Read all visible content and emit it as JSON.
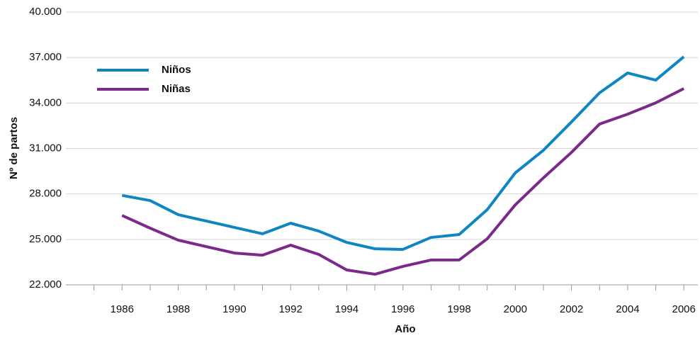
{
  "chart_data": {
    "type": "line",
    "x_label": "Año",
    "y_label": "Nº de partos",
    "x": [
      1986,
      1987,
      1988,
      1989,
      1990,
      1991,
      1992,
      1993,
      1994,
      1995,
      1996,
      1997,
      1998,
      1999,
      2000,
      2001,
      2002,
      2003,
      2004,
      2005,
      2006
    ],
    "series": [
      {
        "name": "Niños",
        "color": "#0f86c1",
        "values": [
          27900,
          27560,
          26630,
          26210,
          25790,
          25370,
          26070,
          25550,
          24800,
          24380,
          24340,
          25130,
          25320,
          26960,
          29390,
          30880,
          32750,
          34670,
          35980,
          35510,
          37050
        ]
      },
      {
        "name": "Niñas",
        "color": "#7b2a8a",
        "values": [
          26580,
          25740,
          24950,
          24520,
          24100,
          23960,
          24620,
          24010,
          22980,
          22700,
          23220,
          23640,
          23640,
          25040,
          27280,
          29060,
          30740,
          32610,
          33260,
          34010,
          34950
        ]
      }
    ],
    "xlim": [
      1984,
      2006.5
    ],
    "xticks": [
      1986,
      1988,
      1990,
      1992,
      1994,
      1996,
      1998,
      2000,
      2002,
      2004,
      2006
    ],
    "x_minor_ticks": [
      1985,
      1987,
      1989,
      1991,
      1993,
      1995,
      1997,
      1999,
      2001,
      2003,
      2005
    ],
    "ylim": [
      22000,
      40000
    ],
    "yticks": [
      {
        "value": 22000,
        "label": "22.000"
      },
      {
        "value": 25000,
        "label": "25.000"
      },
      {
        "value": 28000,
        "label": "28.000"
      },
      {
        "value": 31000,
        "label": "31.000"
      },
      {
        "value": 34000,
        "label": "34.000"
      },
      {
        "value": 37000,
        "label": "37.000"
      },
      {
        "value": 40000,
        "label": "40.000"
      }
    ],
    "grid": true,
    "legend": "upper left"
  }
}
